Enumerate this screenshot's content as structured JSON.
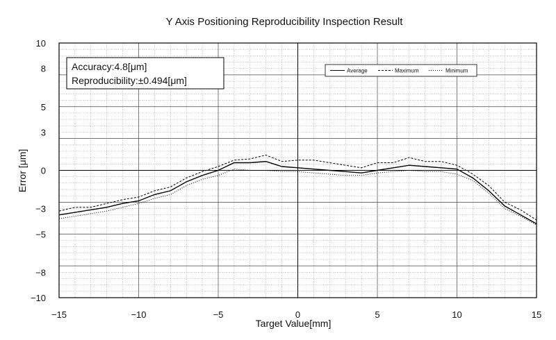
{
  "chart_data": {
    "type": "line",
    "title": "Y Axis Positioning Reproducibility Inspection Result",
    "xlabel": "Target Value[mm]",
    "ylabel": "Error [μm]",
    "xlim": [
      -15,
      15
    ],
    "ylim": [
      -10,
      10
    ],
    "x_ticks": [
      -15,
      -10,
      -5,
      0,
      5,
      10,
      15
    ],
    "x_tick_labels": [
      "−15",
      "−10",
      "−5",
      "0",
      "5",
      "10",
      "15"
    ],
    "y_ticks": [
      10,
      8,
      5,
      3,
      0,
      -3,
      -5,
      -8,
      -10
    ],
    "y_tick_labels": [
      "10",
      "8",
      "5",
      "3",
      "0",
      "−3",
      "−5",
      "−8",
      "−10"
    ],
    "grid": true,
    "legend_position": "top-right",
    "x": [
      -15,
      -14,
      -13,
      -12,
      -11,
      -10,
      -9,
      -8,
      -7,
      -6,
      -5,
      -4,
      -3,
      -2,
      -1,
      0,
      1,
      2,
      3,
      4,
      5,
      6,
      7,
      8,
      9,
      10,
      11,
      12,
      13,
      14,
      15
    ],
    "series": [
      {
        "name": "Average",
        "style": "solid",
        "values": [
          -3.5,
          -3.3,
          -3.1,
          -2.9,
          -2.6,
          -2.4,
          -1.9,
          -1.6,
          -0.9,
          -0.4,
          0.0,
          0.6,
          0.6,
          0.7,
          0.3,
          0.2,
          0.1,
          0.0,
          -0.1,
          -0.2,
          0.0,
          0.2,
          0.4,
          0.3,
          0.2,
          0.1,
          -0.6,
          -1.6,
          -2.8,
          -3.5,
          -4.2
        ]
      },
      {
        "name": "Maximum",
        "style": "dashed",
        "values": [
          -3.2,
          -2.9,
          -2.9,
          -2.6,
          -2.3,
          -2.1,
          -1.6,
          -1.3,
          -0.6,
          -0.1,
          0.3,
          0.8,
          0.9,
          1.2,
          0.7,
          0.8,
          0.8,
          0.6,
          0.4,
          0.2,
          0.6,
          0.6,
          1.0,
          0.7,
          0.7,
          0.4,
          -0.3,
          -1.2,
          -2.5,
          -3.1,
          -3.9
        ]
      },
      {
        "name": "Minimum",
        "style": "dotted",
        "values": [
          -3.8,
          -3.6,
          -3.4,
          -3.2,
          -2.9,
          -2.6,
          -2.2,
          -1.9,
          -1.2,
          -0.7,
          -0.4,
          0.1,
          0.0,
          0.0,
          -0.1,
          -0.1,
          -0.2,
          -0.3,
          -0.4,
          -0.4,
          -0.2,
          -0.1,
          0.0,
          -0.1,
          -0.1,
          -0.3,
          -0.8,
          -1.8,
          -3.0,
          -3.6,
          -4.3
        ]
      }
    ],
    "annotations": {
      "accuracy_label": "Accuracy:4.8[μm]",
      "reproducibility_label": "Reproducibility:±0.494[μm]"
    }
  }
}
